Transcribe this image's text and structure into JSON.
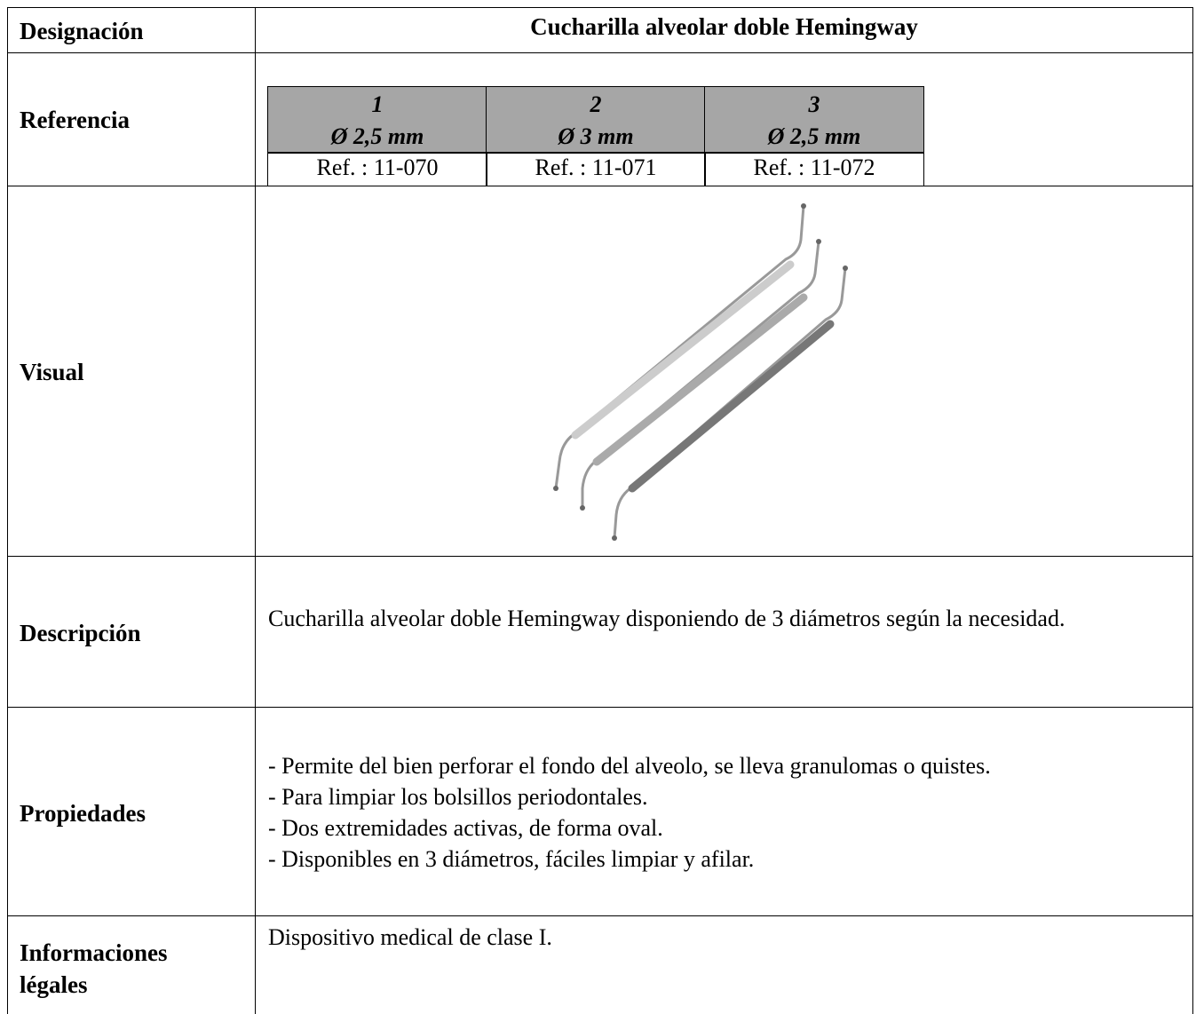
{
  "table": {
    "rows": [
      {
        "label": "Designación",
        "content": "Cucharilla alveolar doble Hemingway"
      },
      {
        "label": "Referencia",
        "references": [
          {
            "number": "1",
            "diameter": "Ø 2,5 mm",
            "ref": "Ref. : 11-070"
          },
          {
            "number": "2",
            "diameter": "Ø 3 mm",
            "ref": "Ref. : 11-071"
          },
          {
            "number": "3",
            "diameter": "Ø 2,5 mm",
            "ref": "Ref. : 11-072"
          }
        ]
      },
      {
        "label": "Visual"
      },
      {
        "label": "Descripción",
        "content": "Cucharilla alveolar doble Hemingway  disponiendo de 3 diámetros según la necesidad."
      },
      {
        "label": "Propiedades",
        "items": [
          "- Permite del bien perforar el fondo del alveolo, se lleva granulomas o quistes.",
          "- Para limpiar los bolsillos periodontales.",
          "- Dos extremidades activas, de forma oval.",
          "- Disponibles en 3 diámetros, fáciles limpiar y afilar."
        ]
      },
      {
        "label": "Informaciones légales",
        "content": "Dispositivo medical de clase I."
      }
    ]
  }
}
